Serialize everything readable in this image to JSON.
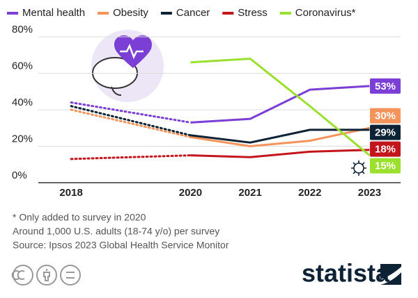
{
  "chart_data": {
    "type": "line",
    "x": [
      2018,
      2020,
      2021,
      2022,
      2023
    ],
    "xlim": [
      2017.45,
      2023.52
    ],
    "xticks": [
      2018,
      2020,
      2021,
      2022,
      2023
    ],
    "ylim": [
      0,
      80
    ],
    "yticks": [
      {
        "value": 0,
        "label": "0%"
      },
      {
        "value": 20,
        "label": "20%"
      },
      {
        "value": 40,
        "label": "40%"
      },
      {
        "value": 60,
        "label": "60%"
      },
      {
        "value": 80,
        "label": "80%"
      }
    ],
    "grid": true,
    "dotted_until": 2020,
    "series": [
      {
        "name": "Mental health",
        "color": "#7b3fd6",
        "values": [
          44,
          33,
          35,
          51,
          53
        ],
        "value_labels": [
          null,
          null,
          null,
          null,
          "53%"
        ]
      },
      {
        "name": "Obesity",
        "color": "#f4935a",
        "values": [
          40,
          25,
          20,
          23,
          30
        ],
        "value_labels": [
          null,
          null,
          null,
          null,
          "30%"
        ]
      },
      {
        "name": "Cancer",
        "color": "#0e2236",
        "values": [
          42,
          26,
          22,
          29,
          29
        ],
        "value_labels": [
          null,
          null,
          null,
          null,
          "29%"
        ]
      },
      {
        "name": "Stress",
        "color": "#c3161c",
        "values": [
          13,
          15,
          14,
          17,
          18
        ],
        "value_labels": [
          null,
          null,
          null,
          null,
          "18%"
        ]
      },
      {
        "name": "Coronavirus*",
        "color": "#9ae02c",
        "values": [
          null,
          66,
          68,
          42,
          15
        ],
        "value_labels": [
          null,
          null,
          null,
          null,
          "15%"
        ]
      }
    ],
    "notes": [
      "* Only added to survey in 2020",
      "Around 1,000 U.S. adults (18-74 y/o) per survey",
      "Source: Ipsos 2023 Global Health Service Monitor"
    ],
    "brand": "statista"
  }
}
